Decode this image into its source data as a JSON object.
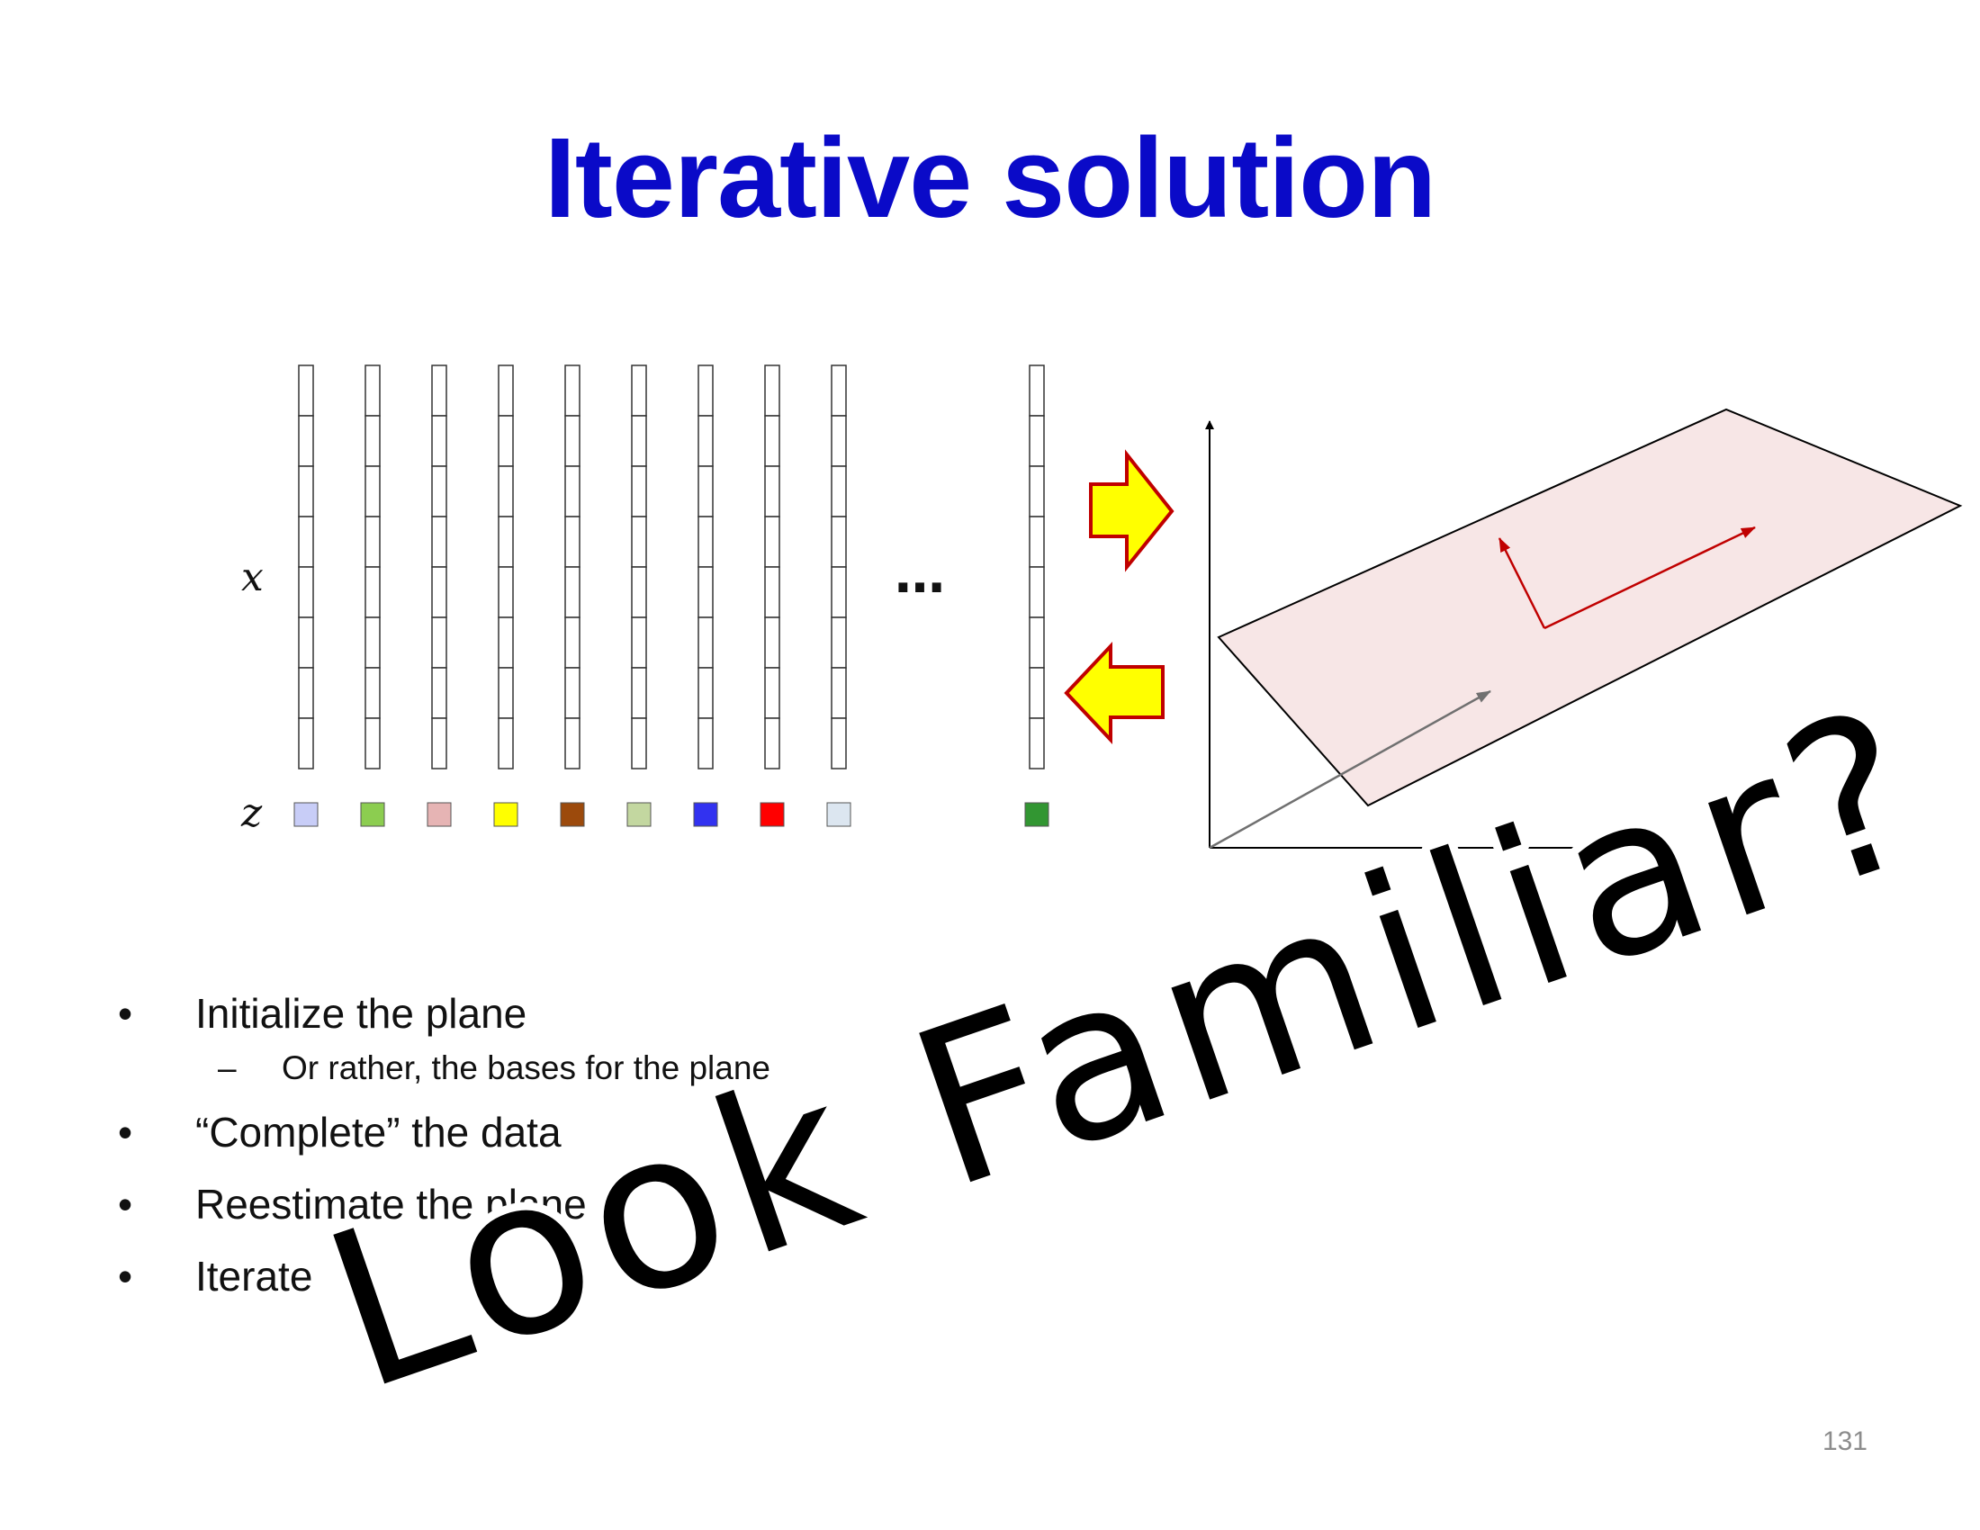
{
  "slide": {
    "title": "Iterative solution",
    "page_number": "131"
  },
  "diagram": {
    "x_label": "x",
    "z_label": "z",
    "ellipsis": "…",
    "column_count_visible": 10,
    "cells_per_column": 8,
    "z_colors": [
      "#c8cdf7",
      "#8ccd50",
      "#e6b4b4",
      "#ffff00",
      "#9c4a0c",
      "#c3d7a0",
      "#3232f0",
      "#ff0000",
      "#dce6f0",
      "#329632"
    ],
    "arrow_fill": "#ffff00",
    "arrow_stroke": "#c00000",
    "plane_fill": "#f7e6e6",
    "plane_vector_color": "#c00000",
    "data_vector_color": "#707070"
  },
  "bullets": [
    {
      "text": "Initialize the plane",
      "sub": [
        "Or rather, the bases for the plane"
      ]
    },
    {
      "text": "“Complete” the data",
      "sub": []
    },
    {
      "text": "Reestimate the plane",
      "sub": []
    },
    {
      "text": "Iterate",
      "sub": []
    }
  ],
  "overlay": {
    "text": "Look Familiar?"
  }
}
